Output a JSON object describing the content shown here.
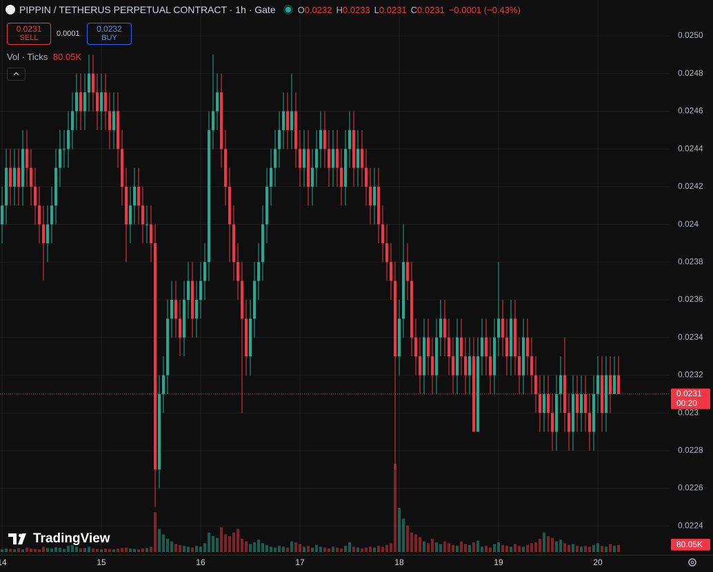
{
  "chart_data": {
    "type": "candlestick",
    "title": "PIPPIN / TETHERUS PERPETUAL CONTRACT · 1h · Gate",
    "ohlc_labels": [
      "O",
      "H",
      "L",
      "C"
    ],
    "change": "−0.0001 (−0.43%)",
    "trade": {
      "sell_price": 0.0231,
      "sell_label": "SELL",
      "spread": 0.0001,
      "buy_price": 0.0232,
      "buy_label": "BUY"
    },
    "countdown": "00:20",
    "watermark": "TradingView",
    "up_color": "#22ab94",
    "down_color": "#f23645",
    "grid": true,
    "ylim": [
      0.0222,
      0.0252
    ],
    "yticks": [
      0.0224,
      0.0226,
      0.0228,
      0.023,
      0.0232,
      0.0234,
      0.0236,
      0.0238,
      0.024,
      0.0242,
      0.0244,
      0.0246,
      0.0248,
      {
        "value": 0.025,
        "label": "0.0250"
      }
    ],
    "xtick_labels": [
      "14",
      "15",
      "16",
      "17",
      "18",
      "19",
      "20"
    ],
    "open": [
      0.024,
      0.0241,
      0.0243,
      0.0242,
      0.0243,
      0.0242,
      0.0244,
      0.0243,
      0.0242,
      0.0241,
      0.024,
      0.0239,
      0.024,
      0.0241,
      0.0243,
      0.0244,
      0.0244,
      0.0245,
      0.0246,
      0.0247,
      0.0246,
      0.0247,
      0.0248,
      0.0247,
      0.0246,
      0.0247,
      0.0246,
      0.0245,
      0.0246,
      0.0244,
      0.0242,
      0.024,
      0.0241,
      0.0242,
      0.0241,
      0.024,
      0.024,
      0.0239,
      0.0227,
      0.0231,
      0.0232,
      0.0235,
      0.0236,
      0.0235,
      0.0234,
      0.0236,
      0.0237,
      0.0235,
      0.0236,
      0.0237,
      0.0238,
      0.0245,
      0.0246,
      0.0247,
      0.0244,
      0.0242,
      0.024,
      0.0238,
      0.0237,
      0.0235,
      0.0233,
      0.0235,
      0.0237,
      0.0238,
      0.024,
      0.0242,
      0.0243,
      0.0244,
      0.0245,
      0.0246,
      0.0245,
      0.0246,
      0.0244,
      0.0243,
      0.0244,
      0.0242,
      0.0243,
      0.0244,
      0.0245,
      0.0244,
      0.0243,
      0.0244,
      0.0243,
      0.0242,
      0.0244,
      0.0245,
      0.0243,
      0.0244,
      0.0243,
      0.0242,
      0.0241,
      0.0242,
      0.024,
      0.0239,
      0.0238,
      0.0237,
      0.0233,
      0.0235,
      0.0238,
      0.0237,
      0.0234,
      0.0233,
      0.0232,
      0.0234,
      0.0233,
      0.0232,
      0.0234,
      0.0235,
      0.0234,
      0.0233,
      0.0232,
      0.0234,
      0.0233,
      0.0232,
      0.0233,
      0.0229,
      0.0233,
      0.0234,
      0.0233,
      0.0232,
      0.0234,
      0.0235,
      0.0234,
      0.0233,
      0.0235,
      0.0233,
      0.0232,
      0.0234,
      0.0233,
      0.0232,
      0.0231,
      0.023,
      0.0231,
      0.023,
      0.0229,
      0.0231,
      0.0232,
      0.023,
      0.0229,
      0.0231,
      0.023,
      0.0231,
      0.023,
      0.0229,
      0.0231,
      0.0232,
      0.023,
      0.0232,
      0.0231,
      0.0232
    ],
    "high": [
      0.0242,
      0.0244,
      0.0244,
      0.0244,
      0.0244,
      0.0245,
      0.0245,
      0.0244,
      0.0243,
      0.0242,
      0.0241,
      0.0241,
      0.0242,
      0.0244,
      0.0245,
      0.0245,
      0.0246,
      0.0247,
      0.0248,
      0.0248,
      0.0248,
      0.0249,
      0.0249,
      0.0248,
      0.0248,
      0.0248,
      0.0247,
      0.0247,
      0.0247,
      0.0245,
      0.0243,
      0.0242,
      0.0243,
      0.0243,
      0.0242,
      0.0241,
      0.0241,
      0.024,
      0.0232,
      0.0233,
      0.0236,
      0.0237,
      0.0237,
      0.0236,
      0.0237,
      0.0238,
      0.0238,
      0.0237,
      0.0238,
      0.0239,
      0.0246,
      0.0249,
      0.0248,
      0.0248,
      0.0245,
      0.0243,
      0.0241,
      0.0239,
      0.0238,
      0.0236,
      0.0236,
      0.0238,
      0.0239,
      0.0241,
      0.0243,
      0.0244,
      0.0245,
      0.0246,
      0.0247,
      0.0247,
      0.0248,
      0.0247,
      0.0245,
      0.0245,
      0.0245,
      0.0244,
      0.0245,
      0.0246,
      0.0246,
      0.0245,
      0.0245,
      0.0245,
      0.0244,
      0.0245,
      0.0246,
      0.0246,
      0.0245,
      0.0245,
      0.0244,
      0.0243,
      0.0243,
      0.0243,
      0.0241,
      0.024,
      0.0239,
      0.0238,
      0.0236,
      0.024,
      0.0239,
      0.0238,
      0.0235,
      0.0234,
      0.0235,
      0.0235,
      0.0234,
      0.0235,
      0.0236,
      0.0236,
      0.0235,
      0.0234,
      0.0235,
      0.0235,
      0.0234,
      0.0234,
      0.0234,
      0.0234,
      0.0235,
      0.0235,
      0.0234,
      0.0235,
      0.0238,
      0.0236,
      0.0235,
      0.0236,
      0.0236,
      0.0234,
      0.0235,
      0.0235,
      0.0234,
      0.0233,
      0.0232,
      0.0232,
      0.0232,
      0.0231,
      0.0232,
      0.0233,
      0.0234,
      0.0231,
      0.0232,
      0.0232,
      0.0232,
      0.0232,
      0.0231,
      0.0232,
      0.0233,
      0.0233,
      0.0233,
      0.0233,
      0.0233,
      0.0233
    ],
    "low": [
      0.0239,
      0.024,
      0.0241,
      0.0241,
      0.0241,
      0.0241,
      0.0242,
      0.0241,
      0.024,
      0.0239,
      0.0237,
      0.0238,
      0.0239,
      0.024,
      0.0242,
      0.0243,
      0.0243,
      0.0244,
      0.0245,
      0.0245,
      0.0245,
      0.0246,
      0.0246,
      0.0245,
      0.0245,
      0.0245,
      0.0244,
      0.0244,
      0.0243,
      0.0241,
      0.0238,
      0.0239,
      0.024,
      0.024,
      0.0239,
      0.0239,
      0.0238,
      0.0225,
      0.0226,
      0.023,
      0.0231,
      0.0234,
      0.0234,
      0.0233,
      0.0233,
      0.0235,
      0.0234,
      0.0234,
      0.0235,
      0.0236,
      0.0237,
      0.0244,
      0.0245,
      0.0243,
      0.0241,
      0.0238,
      0.0237,
      0.0236,
      0.023,
      0.0232,
      0.0232,
      0.0234,
      0.0236,
      0.0237,
      0.0239,
      0.0241,
      0.0242,
      0.0243,
      0.0244,
      0.0244,
      0.0244,
      0.0243,
      0.0242,
      0.0242,
      0.0241,
      0.0241,
      0.0242,
      0.0243,
      0.0243,
      0.0242,
      0.0242,
      0.0242,
      0.0241,
      0.0241,
      0.0243,
      0.0242,
      0.0242,
      0.0242,
      0.0241,
      0.024,
      0.024,
      0.0239,
      0.0238,
      0.0237,
      0.0236,
      0.0227,
      0.0232,
      0.0234,
      0.0236,
      0.0233,
      0.0232,
      0.0231,
      0.0231,
      0.0232,
      0.0231,
      0.0231,
      0.0233,
      0.0233,
      0.0232,
      0.0231,
      0.0231,
      0.0232,
      0.0231,
      0.0231,
      0.0229,
      0.0229,
      0.0232,
      0.0232,
      0.0231,
      0.0231,
      0.0233,
      0.0233,
      0.0232,
      0.0232,
      0.0232,
      0.0231,
      0.0231,
      0.0232,
      0.0231,
      0.023,
      0.0229,
      0.0229,
      0.0229,
      0.0228,
      0.0228,
      0.023,
      0.0229,
      0.0228,
      0.0228,
      0.0229,
      0.0229,
      0.0229,
      0.0228,
      0.0228,
      0.023,
      0.0229,
      0.0229,
      0.023,
      0.0231,
      0.0231
    ],
    "close": [
      0.0241,
      0.0243,
      0.0242,
      0.0243,
      0.0242,
      0.0244,
      0.0243,
      0.0242,
      0.0241,
      0.024,
      0.0239,
      0.024,
      0.0241,
      0.0243,
      0.0244,
      0.0244,
      0.0245,
      0.0246,
      0.0247,
      0.0246,
      0.0247,
      0.0248,
      0.0247,
      0.0246,
      0.0247,
      0.0246,
      0.0245,
      0.0246,
      0.0244,
      0.0242,
      0.024,
      0.0241,
      0.0242,
      0.0241,
      0.024,
      0.024,
      0.0239,
      0.0227,
      0.0231,
      0.0232,
      0.0235,
      0.0236,
      0.0235,
      0.0234,
      0.0236,
      0.0237,
      0.0235,
      0.0236,
      0.0237,
      0.0238,
      0.0245,
      0.0246,
      0.0247,
      0.0244,
      0.0242,
      0.024,
      0.0238,
      0.0237,
      0.0235,
      0.0233,
      0.0235,
      0.0237,
      0.0238,
      0.024,
      0.0242,
      0.0243,
      0.0244,
      0.0245,
      0.0246,
      0.0245,
      0.0246,
      0.0244,
      0.0243,
      0.0244,
      0.0242,
      0.0243,
      0.0244,
      0.0245,
      0.0244,
      0.0243,
      0.0244,
      0.0243,
      0.0242,
      0.0244,
      0.0245,
      0.0243,
      0.0244,
      0.0243,
      0.0242,
      0.0241,
      0.0242,
      0.024,
      0.0239,
      0.0238,
      0.0237,
      0.0233,
      0.0235,
      0.0238,
      0.0237,
      0.0234,
      0.0233,
      0.0232,
      0.0234,
      0.0233,
      0.0232,
      0.0234,
      0.0235,
      0.0234,
      0.0233,
      0.0232,
      0.0234,
      0.0233,
      0.0232,
      0.0233,
      0.0229,
      0.0233,
      0.0234,
      0.0233,
      0.0232,
      0.0234,
      0.0235,
      0.0234,
      0.0233,
      0.0235,
      0.0233,
      0.0232,
      0.0234,
      0.0233,
      0.0232,
      0.0231,
      0.023,
      0.0231,
      0.023,
      0.0229,
      0.0231,
      0.0232,
      0.023,
      0.0229,
      0.0231,
      0.023,
      0.0231,
      0.023,
      0.0229,
      0.0231,
      0.0232,
      0.023,
      0.0232,
      0.0231,
      0.0232,
      0.0231
    ],
    "volume": {
      "name": "Vol · Ticks",
      "last_value_label": "80.05K",
      "values": [
        30000,
        40000,
        35000,
        30000,
        45000,
        30000,
        50000,
        40000,
        35000,
        30000,
        60000,
        45000,
        40000,
        55000,
        50000,
        35000,
        70000,
        80000,
        60000,
        40000,
        45000,
        60000,
        40000,
        35000,
        30000,
        40000,
        35000,
        30000,
        40000,
        45000,
        50000,
        40000,
        35000,
        30000,
        40000,
        45000,
        60000,
        450000,
        260000,
        200000,
        150000,
        120000,
        90000,
        80000,
        70000,
        60000,
        50000,
        70000,
        60000,
        100000,
        220000,
        180000,
        160000,
        280000,
        200000,
        180000,
        220000,
        260000,
        150000,
        120000,
        90000,
        110000,
        140000,
        100000,
        80000,
        60000,
        50000,
        70000,
        60000,
        50000,
        120000,
        110000,
        90000,
        60000,
        70000,
        50000,
        80000,
        60000,
        50000,
        40000,
        60000,
        50000,
        40000,
        70000,
        110000,
        60000,
        50000,
        40000,
        50000,
        60000,
        50000,
        70000,
        60000,
        80000,
        100000,
        1000000,
        500000,
        380000,
        300000,
        220000,
        200000,
        170000,
        120000,
        100000,
        150000,
        110000,
        90000,
        120000,
        100000,
        80000,
        70000,
        120000,
        90000,
        80000,
        110000,
        130000,
        60000,
        70000,
        50000,
        90000,
        110000,
        80000,
        70000,
        60000,
        90000,
        70000,
        60000,
        80000,
        100000,
        110000,
        150000,
        220000,
        180000,
        160000,
        120000,
        140000,
        100000,
        80000,
        90000,
        70000,
        60000,
        70000,
        60000,
        80000,
        100000,
        70000,
        60000,
        90000,
        70000,
        80050
      ]
    }
  }
}
